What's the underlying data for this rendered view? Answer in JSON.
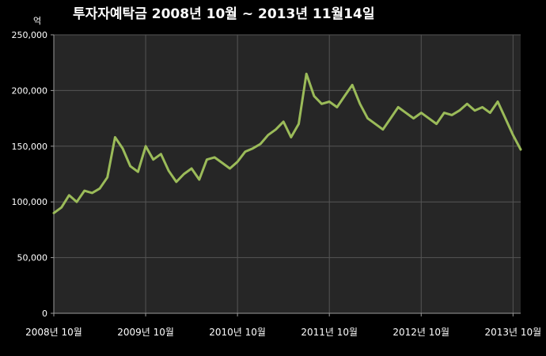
{
  "chart_data": {
    "type": "line",
    "title": "투자자예탁금    2008년 10월 ~ 2013년 11월14일",
    "ylabel": "억",
    "xlabel": "",
    "ylim": [
      0,
      250000
    ],
    "y_ticks": [
      "0",
      "50,000",
      "100,000",
      "150,000",
      "200,000",
      "250,000"
    ],
    "x_ticks": [
      "2008년 10월",
      "2009년 10월",
      "2010년 10월",
      "2011년 10월",
      "2012년 10월",
      "2013년 10월"
    ],
    "x_range": [
      "2008-10",
      "2013-11"
    ],
    "grid": true,
    "legend": "none",
    "colors": {
      "line": "#9bbb59",
      "plot_bg": "#262626",
      "grid": "#555555",
      "axis_text": "#ffffff"
    },
    "series": [
      {
        "x": [
          "2008-10",
          "2008-11",
          "2008-12",
          "2009-01",
          "2009-02",
          "2009-03",
          "2009-04",
          "2009-05",
          "2009-06",
          "2009-07",
          "2009-08",
          "2009-09",
          "2009-10",
          "2009-11",
          "2009-12",
          "2010-01",
          "2010-02",
          "2010-03",
          "2010-04",
          "2010-05",
          "2010-06",
          "2010-07",
          "2010-08",
          "2010-09",
          "2010-10",
          "2010-11",
          "2010-12",
          "2011-01",
          "2011-02",
          "2011-03",
          "2011-04",
          "2011-05",
          "2011-06",
          "2011-07",
          "2011-08",
          "2011-09",
          "2011-10",
          "2011-11",
          "2011-12",
          "2012-01",
          "2012-02",
          "2012-03",
          "2012-04",
          "2012-05",
          "2012-06",
          "2012-07",
          "2012-08",
          "2012-09",
          "2012-10",
          "2012-11",
          "2012-12",
          "2013-01",
          "2013-02",
          "2013-03",
          "2013-04",
          "2013-05",
          "2013-06",
          "2013-07",
          "2013-08",
          "2013-09",
          "2013-10",
          "2013-11"
        ],
        "values": [
          90000,
          95000,
          106000,
          100000,
          110000,
          108000,
          112000,
          122000,
          158000,
          148000,
          132000,
          127000,
          150000,
          138000,
          143000,
          128000,
          118000,
          125000,
          130000,
          120000,
          138000,
          140000,
          135000,
          130000,
          136000,
          145000,
          148000,
          152000,
          160000,
          165000,
          172000,
          158000,
          170000,
          215000,
          195000,
          188000,
          190000,
          185000,
          195000,
          205000,
          188000,
          175000,
          170000,
          165000,
          175000,
          185000,
          180000,
          175000,
          180000,
          175000,
          170000,
          180000,
          178000,
          182000,
          188000,
          182000,
          185000,
          180000,
          190000,
          175000,
          160000,
          147000
        ]
      }
    ]
  }
}
